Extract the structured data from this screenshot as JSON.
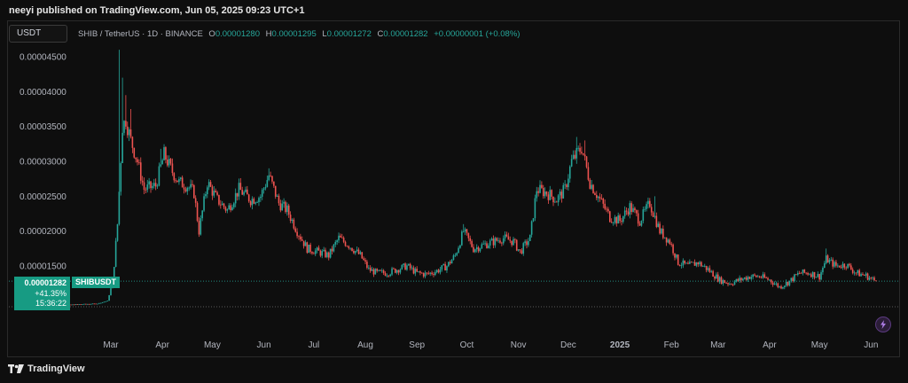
{
  "header": {
    "published": "neeyi published on TradingView.com, Jun 05, 2025 09:23 UTC+1"
  },
  "toolbar": {
    "currency": "USDT"
  },
  "legend": {
    "symbol": "SHIB / TetherUS · 1D · BINANCE",
    "open_label": "O",
    "open": "0.00001280",
    "high_label": "H",
    "high": "0.00001295",
    "low_label": "L",
    "low": "0.00001272",
    "close_label": "C",
    "close": "0.00001282",
    "change": "+0.00000001 (+0.08%)"
  },
  "price_tag": {
    "price": "0.00001282",
    "change_pct": "+41.35%",
    "countdown": "15:36:22",
    "symbol": "SHIBUSDT"
  },
  "brand": {
    "name": "TradingView"
  },
  "colors": {
    "up": "#26a69a",
    "down": "#ef5350",
    "tag": "#179b83",
    "background": "#0e0e0e",
    "text": "#d1d4dc"
  },
  "chart_data": {
    "type": "candlestick",
    "series_name": "SHIBUSDT",
    "timeframe": "1D",
    "y_ticks": [
      "0.00004500",
      "0.00004000",
      "0.00003500",
      "0.00003000",
      "0.00002500",
      "0.00002000",
      "0.00001500"
    ],
    "x_ticks": [
      "Mar",
      "Apr",
      "May",
      "Jun",
      "Jul",
      "Aug",
      "Sep",
      "Oct",
      "Nov",
      "Dec",
      "2025",
      "Feb",
      "Mar",
      "Apr",
      "May",
      "Jun"
    ],
    "x_tick_index": [
      0,
      31,
      61,
      92,
      122,
      153,
      184,
      214,
      245,
      275,
      306,
      337,
      365,
      396,
      426,
      457
    ],
    "start_index": -36,
    "last_index": 460,
    "ylim": [
      9.3e-06,
      4.63e-05
    ],
    "current_price": 1.282e-05,
    "prior_close_line": 9.15e-06,
    "anchors": [
      [
        -36,
        9.3e-06
      ],
      [
        -20,
        9.5e-06
      ],
      [
        -8,
        9.6e-06
      ],
      [
        -2,
        1e-05
      ],
      [
        1,
        1.25e-05
      ],
      [
        4,
        2.1e-05
      ],
      [
        7,
        3.5e-05
      ],
      [
        9,
        3.6e-05
      ],
      [
        12,
        3.3e-05
      ],
      [
        16,
        3e-05
      ],
      [
        20,
        2.6e-05
      ],
      [
        27,
        2.65e-05
      ],
      [
        32,
        3.1e-05
      ],
      [
        37,
        2.85e-05
      ],
      [
        41,
        2.7e-05
      ],
      [
        46,
        2.65e-05
      ],
      [
        50,
        2.55e-05
      ],
      [
        53,
        2e-05
      ],
      [
        58,
        2.7e-05
      ],
      [
        64,
        2.45e-05
      ],
      [
        70,
        2.3e-05
      ],
      [
        77,
        2.6e-05
      ],
      [
        84,
        2.45e-05
      ],
      [
        90,
        2.5e-05
      ],
      [
        95,
        2.8e-05
      ],
      [
        101,
        2.4e-05
      ],
      [
        106,
        2.3e-05
      ],
      [
        112,
        2e-05
      ],
      [
        118,
        1.75e-05
      ],
      [
        125,
        1.7e-05
      ],
      [
        131,
        1.65e-05
      ],
      [
        137,
        1.9e-05
      ],
      [
        143,
        1.8e-05
      ],
      [
        150,
        1.65e-05
      ],
      [
        155,
        1.45e-05
      ],
      [
        160,
        1.4e-05
      ],
      [
        166,
        1.4e-05
      ],
      [
        172,
        1.45e-05
      ],
      [
        178,
        1.5e-05
      ],
      [
        184,
        1.4e-05
      ],
      [
        190,
        1.38e-05
      ],
      [
        196,
        1.43e-05
      ],
      [
        202,
        1.5e-05
      ],
      [
        207,
        1.65e-05
      ],
      [
        212,
        2e-05
      ],
      [
        218,
        1.75e-05
      ],
      [
        224,
        1.8e-05
      ],
      [
        230,
        1.85e-05
      ],
      [
        236,
        1.9e-05
      ],
      [
        242,
        1.85e-05
      ],
      [
        246,
        1.7e-05
      ],
      [
        252,
        1.9e-05
      ],
      [
        256,
        2.6e-05
      ],
      [
        262,
        2.55e-05
      ],
      [
        268,
        2.45e-05
      ],
      [
        273,
        2.6e-05
      ],
      [
        277,
        3e-05
      ],
      [
        283,
        3.2e-05
      ],
      [
        288,
        2.7e-05
      ],
      [
        294,
        2.45e-05
      ],
      [
        300,
        2.2e-05
      ],
      [
        306,
        2.15e-05
      ],
      [
        312,
        2.35e-05
      ],
      [
        318,
        2.15e-05
      ],
      [
        324,
        2.4e-05
      ],
      [
        330,
        2e-05
      ],
      [
        336,
        1.85e-05
      ],
      [
        341,
        1.55e-05
      ],
      [
        347,
        1.5e-05
      ],
      [
        353,
        1.55e-05
      ],
      [
        359,
        1.45e-05
      ],
      [
        366,
        1.3e-05
      ],
      [
        372,
        1.25e-05
      ],
      [
        378,
        1.3e-05
      ],
      [
        384,
        1.35e-05
      ],
      [
        390,
        1.35e-05
      ],
      [
        396,
        1.3e-05
      ],
      [
        402,
        1.2e-05
      ],
      [
        408,
        1.28e-05
      ],
      [
        414,
        1.4e-05
      ],
      [
        420,
        1.4e-05
      ],
      [
        426,
        1.35e-05
      ],
      [
        430,
        1.6e-05
      ],
      [
        436,
        1.5e-05
      ],
      [
        442,
        1.52e-05
      ],
      [
        448,
        1.4e-05
      ],
      [
        454,
        1.36e-05
      ],
      [
        460,
        1.28e-05
      ]
    ],
    "spikes": [
      [
        5,
        4.6e-05
      ],
      [
        7,
        4.2e-05
      ],
      [
        9,
        3.95e-05
      ],
      [
        12,
        3.75e-05
      ],
      [
        30,
        3.18e-05
      ],
      [
        95,
        2.9e-05
      ],
      [
        137,
        1.98e-05
      ],
      [
        160,
        1.4e-05
      ],
      [
        212,
        2.1e-05
      ],
      [
        280,
        3.35e-05
      ],
      [
        285,
        3.3e-05
      ],
      [
        327,
        2.5e-05
      ],
      [
        430,
        1.75e-05
      ]
    ]
  }
}
